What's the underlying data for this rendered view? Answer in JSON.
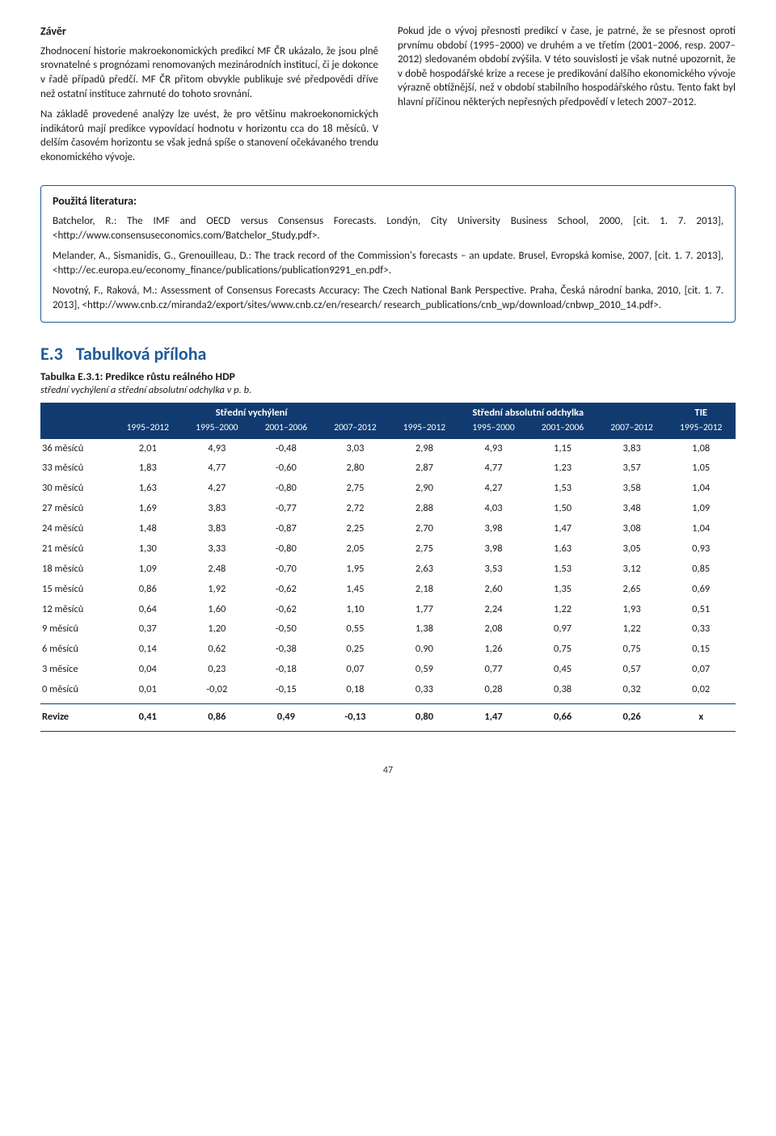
{
  "zaver": {
    "title": "Závěr",
    "left_paras": [
      "Zhodnocení historie makroekonomických predikcí MF ČR ukázalo, že jsou plně srovnatelné s prognózami renomovaných mezinárodních institucí, či je dokonce v řadě případů předčí. MF ČR přitom obvykle publikuje své předpovědi dříve než ostatní instituce zahrnuté do tohoto srovnání.",
      "Na základě provedené analýzy lze uvést, že pro většinu makroekonomických indikátorů mají predikce vypovídací hodnotu v horizontu cca do 18 měsíců. V delším časovém horizontu se však jedná spíše o stanovení očekávaného trendu ekonomického vývoje."
    ],
    "right_paras": [
      "Pokud jde o vývoj přesnosti predikcí v čase, je patrné, že se přesnost oproti prvnímu období (1995–2000) ve druhém a ve třetím (2001–2006, resp. 2007–2012) sledovaném období zvýšila. V této souvislosti je však nutné upozornit, že v době hospodářské krize a recese je predikování dalšího ekonomického vývoje výrazně obtížnější, než v období stabilního hospodářského růstu. Tento fakt byl hlavní příčinou některých nepřesných předpovědí v letech 2007–2012."
    ]
  },
  "literatura": {
    "title": "Použitá literatura:",
    "items": [
      "Batchelor, R.: The IMF and OECD versus Consensus Forecasts. Londýn, City University Business School, 2000, [cit. 1. 7. 2013], <http://www.consensuseconomics.com/Batchelor_Study.pdf>.",
      "Melander, A., Sismanidis, G., Grenouilleau, D.: The track record of the Commission's forecasts – an update. Brusel, Evropská komise, 2007, [cit. 1. 7. 2013], <http://ec.europa.eu/economy_finance/publications/publication9291_en.pdf>.",
      "Novotný, F., Raková, M.: Assessment of Consensus Forecasts Accuracy: The Czech National Bank Perspective. Praha, Česká národní banka, 2010, [cit. 1. 7. 2013], <http://www.cnb.cz/miranda2/export/sites/www.cnb.cz/en/research/ research_publications/cnb_wp/download/cnbwp_2010_14.pdf>."
    ]
  },
  "section_e3": {
    "num": "E.3",
    "title": "Tabulková příloha",
    "table_title": "Tabulka E.3.1: Predikce růstu reálného HDP",
    "table_sub": "střední vychýlení a střední absolutní odchylka v p. b."
  },
  "table": {
    "group_headers": [
      "",
      "Střední vychýlení",
      "Střední absolutní odchylka",
      "TIE"
    ],
    "sub_headers": [
      "1995–2012",
      "1995–2000",
      "2001–2006",
      "2007–2012",
      "1995–2012",
      "1995–2000",
      "2001–2006",
      "2007–2012",
      "1995–2012"
    ],
    "rows": [
      {
        "label": "36 měsíců",
        "v": [
          "2,01",
          "4,93",
          "-0,48",
          "3,03",
          "2,98",
          "4,93",
          "1,15",
          "3,83",
          "1,08"
        ]
      },
      {
        "label": "33 měsíců",
        "v": [
          "1,83",
          "4,77",
          "-0,60",
          "2,80",
          "2,87",
          "4,77",
          "1,23",
          "3,57",
          "1,05"
        ]
      },
      {
        "label": "30 měsíců",
        "v": [
          "1,63",
          "4,27",
          "-0,80",
          "2,75",
          "2,90",
          "4,27",
          "1,53",
          "3,58",
          "1,04"
        ]
      },
      {
        "label": "27 měsíců",
        "v": [
          "1,69",
          "3,83",
          "-0,77",
          "2,72",
          "2,88",
          "4,03",
          "1,50",
          "3,48",
          "1,09"
        ]
      },
      {
        "label": "24 měsíců",
        "v": [
          "1,48",
          "3,83",
          "-0,87",
          "2,25",
          "2,70",
          "3,98",
          "1,47",
          "3,08",
          "1,04"
        ]
      },
      {
        "label": "21 měsíců",
        "v": [
          "1,30",
          "3,33",
          "-0,80",
          "2,05",
          "2,75",
          "3,98",
          "1,63",
          "3,05",
          "0,93"
        ]
      },
      {
        "label": "18 měsíců",
        "v": [
          "1,09",
          "2,48",
          "-0,70",
          "1,95",
          "2,63",
          "3,53",
          "1,53",
          "3,12",
          "0,85"
        ]
      },
      {
        "label": "15 měsíců",
        "v": [
          "0,86",
          "1,92",
          "-0,62",
          "1,45",
          "2,18",
          "2,60",
          "1,35",
          "2,65",
          "0,69"
        ]
      },
      {
        "label": "12 měsíců",
        "v": [
          "0,64",
          "1,60",
          "-0,62",
          "1,10",
          "1,77",
          "2,24",
          "1,22",
          "1,93",
          "0,51"
        ]
      },
      {
        "label": "9 měsíců",
        "v": [
          "0,37",
          "1,20",
          "-0,50",
          "0,55",
          "1,38",
          "2,08",
          "0,97",
          "1,22",
          "0,33"
        ]
      },
      {
        "label": "6 měsíců",
        "v": [
          "0,14",
          "0,62",
          "-0,38",
          "0,25",
          "0,90",
          "1,26",
          "0,75",
          "0,75",
          "0,15"
        ]
      },
      {
        "label": "3 měsíce",
        "v": [
          "0,04",
          "0,23",
          "-0,18",
          "0,07",
          "0,59",
          "0,77",
          "0,45",
          "0,57",
          "0,07"
        ]
      },
      {
        "label": "0 měsíců",
        "v": [
          "0,01",
          "-0,02",
          "-0,15",
          "0,18",
          "0,33",
          "0,28",
          "0,38",
          "0,32",
          "0,02"
        ]
      }
    ],
    "revize": {
      "label": "Revize",
      "v": [
        "0,41",
        "0,86",
        "0,49",
        "-0,13",
        "0,80",
        "1,47",
        "0,66",
        "0,26",
        "x"
      ]
    },
    "header_bg": "#113b70",
    "header_fg": "#ffffff",
    "border_color": "#113b70",
    "section_accent": "#1f5b9a"
  },
  "page_number": "47"
}
